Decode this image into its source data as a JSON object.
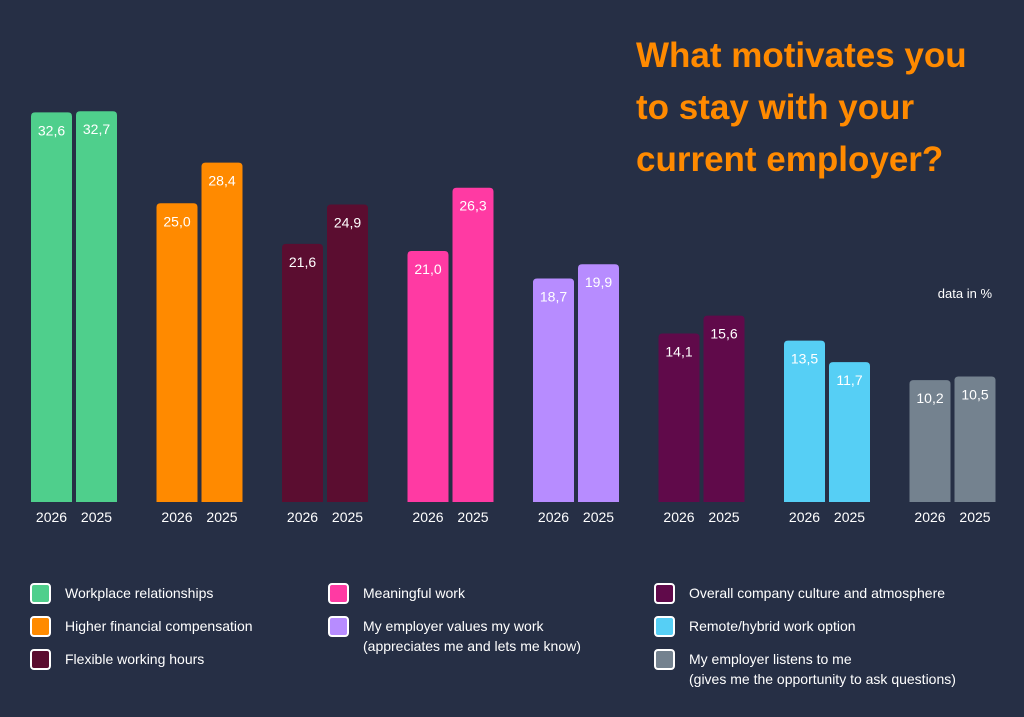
{
  "title_lines": [
    "What motivates you",
    "to stay with your",
    "current employer?"
  ],
  "unit_note": "data in %",
  "chart_data": {
    "type": "bar",
    "title": "What motivates you to stay with your current employer?",
    "unit": "data in %",
    "ylim": [
      0,
      33
    ],
    "grid": false,
    "legend_position": "bottom",
    "x_labels": [
      "2026",
      "2025"
    ],
    "categories": [
      {
        "name": "Workplace relationships",
        "color": "#4fcf8c",
        "values": [
          32.6,
          32.7
        ],
        "labels": [
          "32,6",
          "32,7"
        ]
      },
      {
        "name": "Higher financial compensation",
        "color": "#ff8a00",
        "values": [
          25.0,
          28.4
        ],
        "labels": [
          "25,0",
          "28,4"
        ]
      },
      {
        "name": "Flexible working hours",
        "color": "#5b0d30",
        "values": [
          21.6,
          24.9
        ],
        "labels": [
          "21,6",
          "24,9"
        ]
      },
      {
        "name": "Meaningful work",
        "color": "#ff3aa3",
        "values": [
          21.0,
          26.3
        ],
        "labels": [
          "21,0",
          "26,3"
        ]
      },
      {
        "name": "My employer values my work (appreciates me and lets me know)",
        "color": "#b78cff",
        "values": [
          18.7,
          19.9
        ],
        "labels": [
          "18,7",
          "19,9"
        ]
      },
      {
        "name": "Overall company culture and atmosphere",
        "color": "#600a4a",
        "values": [
          14.1,
          15.6
        ],
        "labels": [
          "14,1",
          "15,6"
        ]
      },
      {
        "name": "Remote/hybrid work option",
        "color": "#56cff5",
        "values": [
          13.5,
          11.7
        ],
        "labels": [
          "13,5",
          "11,7"
        ]
      },
      {
        "name": "My employer listens to me (gives me the opportunity to ask questions)",
        "color": "#74828f",
        "values": [
          10.2,
          10.5
        ],
        "labels": [
          "10,2",
          "10,5"
        ]
      }
    ]
  },
  "legend": [
    {
      "label": "Workplace relationships",
      "sub": "",
      "color": "#4fcf8c"
    },
    {
      "label": "Higher financial compensation",
      "sub": "",
      "color": "#ff8a00"
    },
    {
      "label": "Flexible working hours",
      "sub": "",
      "color": "#5b0d30"
    },
    {
      "label": "Meaningful work",
      "sub": "",
      "color": "#ff3aa3"
    },
    {
      "label": "My employer values my work",
      "sub": "(appreciates me and lets me know)",
      "color": "#b78cff"
    },
    {
      "label": "Overall company culture and atmosphere",
      "sub": "",
      "color": "#600a4a"
    },
    {
      "label": "Remote/hybrid work option",
      "sub": "",
      "color": "#56cff5"
    },
    {
      "label": "My employer listens to me",
      "sub": "(gives me the opportunity to ask questions)",
      "color": "#74828f"
    }
  ]
}
